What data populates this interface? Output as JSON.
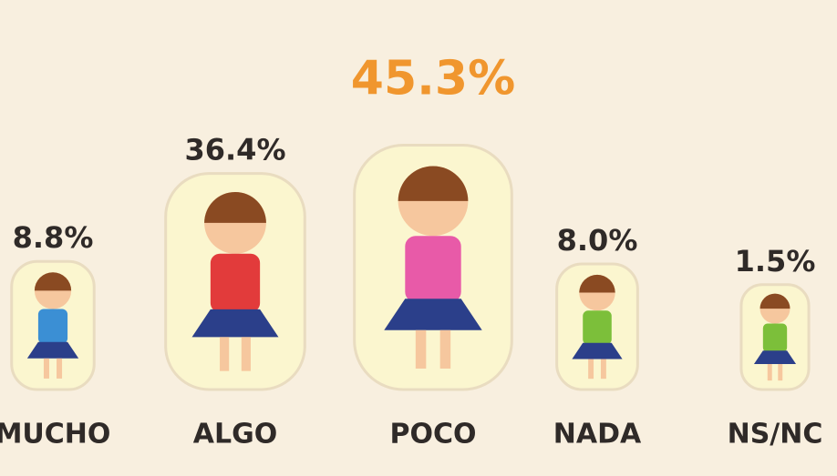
{
  "chart_data": {
    "type": "pictograph",
    "categories": [
      "MUCHO",
      "ALGO",
      "POCO",
      "NADA",
      "NS/NC"
    ],
    "values": [
      8.8,
      36.4,
      45.3,
      8.0,
      1.5
    ],
    "value_labels": [
      "8.8%",
      "36.4%",
      "45.3%",
      "8.0%",
      "1.5%"
    ],
    "colors": [
      "#3b8fd4",
      "#e23b3b",
      "#e85aa8",
      "#7cbf3a",
      "#7cbf3a"
    ],
    "label_colors": [
      "#2f2a28",
      "#2f2a28",
      "#f0962e",
      "#2f2a28",
      "#2f2a28"
    ]
  }
}
